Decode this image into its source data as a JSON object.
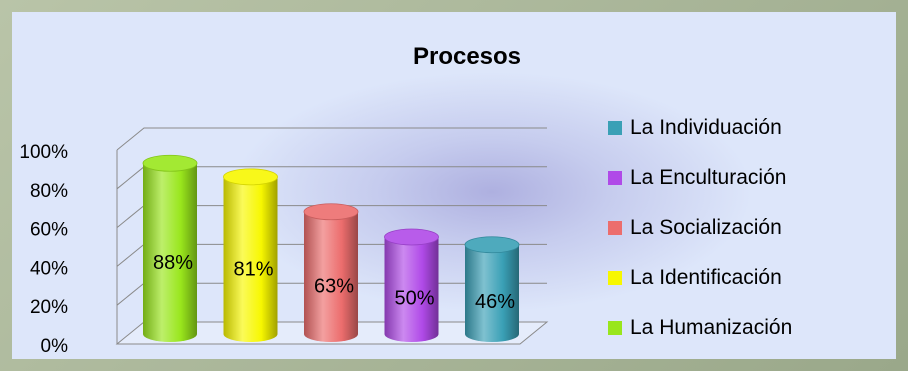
{
  "chart_data": {
    "type": "bar",
    "title": "Procesos",
    "categories": [
      "La Humanización",
      "La Identificación",
      "La Socialización",
      "La Enculturación",
      "La Individuación"
    ],
    "values": [
      88,
      81,
      63,
      50,
      46
    ],
    "value_labels": [
      "88%",
      "81%",
      "63%",
      "50%",
      "46%"
    ],
    "ylim": [
      0,
      100
    ],
    "ytick_labels": [
      "0%",
      "20%",
      "40%",
      "60%",
      "80%",
      "100%"
    ],
    "grid": true,
    "legend_position": "right",
    "legend": [
      "La Individuación",
      "La Enculturación",
      "La Socialización",
      "La Identificación",
      "La Humanización"
    ],
    "colors": {
      "La Humanización": "#99e61c",
      "La Identificación": "#f7f700",
      "La Socialización": "#ec6d6d",
      "La Enculturación": "#b04ae8",
      "La Individuación": "#3aa0b6"
    }
  }
}
